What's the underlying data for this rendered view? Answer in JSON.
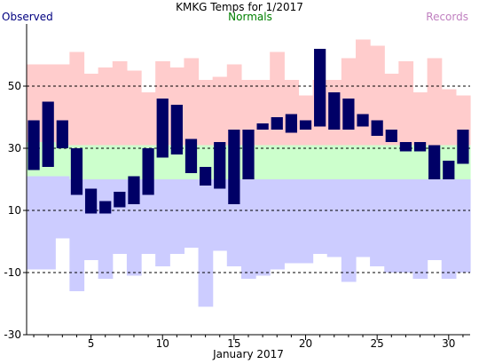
{
  "chart_data": {
    "type": "bar",
    "title": "KMKG Temps for 1/2017",
    "xlabel": "January 2017",
    "ylabel": "",
    "legend": [
      {
        "name": "Observed",
        "color": "#000080",
        "position": "top-left"
      },
      {
        "name": "Normals",
        "color": "#008000",
        "position": "top-center"
      },
      {
        "name": "Records",
        "color": "#c080c0",
        "position": "top-right"
      }
    ],
    "ylim": [
      -30,
      70
    ],
    "y_ticks": [
      -30,
      -10,
      10,
      30,
      50
    ],
    "y_gridlines": [
      -10,
      10,
      30,
      50
    ],
    "x_ticks": [
      5,
      10,
      15,
      20,
      25,
      30
    ],
    "days": [
      1,
      2,
      3,
      4,
      5,
      6,
      7,
      8,
      9,
      10,
      11,
      12,
      13,
      14,
      15,
      16,
      17,
      18,
      19,
      20,
      21,
      22,
      23,
      24,
      25,
      26,
      27,
      28,
      29,
      30,
      31
    ],
    "colors": {
      "observed": "#000066",
      "record_range_above_normal": "#ffcccc",
      "normal_range": "#ccffcc",
      "record_range_below_normal": "#ccccff"
    },
    "series": [
      {
        "name": "Observed High",
        "values": [
          39,
          45,
          39,
          30,
          17,
          13,
          16,
          21,
          30,
          46,
          44,
          33,
          24,
          32,
          36,
          36,
          38,
          40,
          41,
          39,
          62,
          48,
          46,
          41,
          39,
          36,
          32,
          32,
          31,
          26,
          36
        ]
      },
      {
        "name": "Observed Low",
        "values": [
          23,
          24,
          30,
          15,
          9,
          9,
          11,
          12,
          15,
          27,
          28,
          22,
          18,
          17,
          12,
          20,
          36,
          36,
          35,
          36,
          37,
          36,
          36,
          37,
          34,
          32,
          29,
          29,
          20,
          20,
          25
        ]
      },
      {
        "name": "Normal High",
        "values": [
          32,
          32,
          31,
          31,
          31,
          31,
          31,
          31,
          31,
          31,
          31,
          31,
          31,
          31,
          31,
          31,
          31,
          31,
          31,
          31,
          31,
          31,
          31,
          31,
          31,
          31,
          31,
          31,
          31,
          31,
          31
        ]
      },
      {
        "name": "Normal Low",
        "values": [
          21,
          21,
          21,
          20,
          20,
          20,
          20,
          20,
          20,
          20,
          20,
          20,
          20,
          20,
          20,
          20,
          20,
          20,
          20,
          20,
          20,
          20,
          20,
          20,
          20,
          20,
          20,
          20,
          20,
          20,
          20
        ]
      },
      {
        "name": "Record High",
        "values": [
          57,
          57,
          57,
          61,
          54,
          56,
          58,
          55,
          48,
          58,
          56,
          59,
          52,
          53,
          57,
          52,
          52,
          61,
          52,
          47,
          52,
          52,
          59,
          65,
          63,
          54,
          58,
          48,
          59,
          49,
          47
        ]
      },
      {
        "name": "Record Low",
        "values": [
          -9,
          -9,
          1,
          -16,
          -6,
          -12,
          -4,
          -11,
          -4,
          -8,
          -4,
          -2,
          -21,
          -3,
          -8,
          -12,
          -11,
          -9,
          -7,
          -7,
          -4,
          -5,
          -13,
          -5,
          -8,
          -10,
          -10,
          -12,
          -6,
          -12,
          -10
        ]
      }
    ]
  }
}
